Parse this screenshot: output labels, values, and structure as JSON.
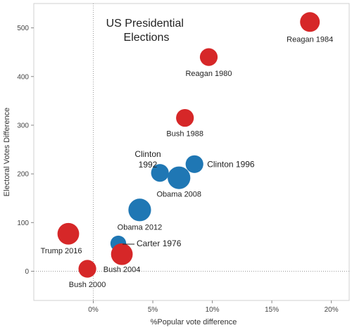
{
  "chart_data": {
    "type": "scatter",
    "title_lines": [
      "US Presidential",
      "Elections"
    ],
    "xlabel": "%Popular vote difference",
    "ylabel": "Electoral Votes Difference",
    "xlim": [
      -5,
      21.5
    ],
    "ylim": [
      -60,
      550
    ],
    "x_ticks": [
      0,
      5,
      10,
      15,
      20
    ],
    "x_tick_labels": [
      "0%",
      "5%",
      "10%",
      "15%",
      "20%"
    ],
    "y_ticks": [
      0,
      100,
      200,
      300,
      400,
      500
    ],
    "y_tick_labels": [
      "0",
      "100",
      "200",
      "300",
      "400",
      "500"
    ],
    "grid": false,
    "zero_reference_lines": true,
    "colors": {
      "Republican": "#d62728",
      "Democratic": "#1f77b4"
    },
    "points": [
      {
        "label": "Reagan 1984",
        "x": 18.2,
        "y": 512,
        "party": "Republican",
        "size": 1.0
      },
      {
        "label": "Reagan 1980",
        "x": 9.7,
        "y": 440,
        "party": "Republican",
        "size": 0.9
      },
      {
        "label": "Bush 1988",
        "x": 7.7,
        "y": 315,
        "party": "Republican",
        "size": 0.9
      },
      {
        "label": "Clinton 1992",
        "x": 5.6,
        "y": 202,
        "party": "Democratic",
        "size": 0.9
      },
      {
        "label": "Clinton 1996",
        "x": 8.5,
        "y": 220,
        "party": "Democratic",
        "size": 0.9
      },
      {
        "label": "Obama 2008",
        "x": 7.2,
        "y": 192,
        "party": "Democratic",
        "size": 1.15
      },
      {
        "label": "Obama 2012",
        "x": 3.9,
        "y": 126,
        "party": "Democratic",
        "size": 1.15
      },
      {
        "label": "Trump 2016",
        "x": -2.1,
        "y": 77,
        "party": "Republican",
        "size": 1.1
      },
      {
        "label": "Carter 1976",
        "x": 2.1,
        "y": 57,
        "party": "Democratic",
        "size": 0.8
      },
      {
        "label": "Bush 2004",
        "x": 2.4,
        "y": 35,
        "party": "Republican",
        "size": 1.1
      },
      {
        "label": "Bush 2000",
        "x": -0.5,
        "y": 5,
        "party": "Republican",
        "size": 0.9
      }
    ]
  }
}
